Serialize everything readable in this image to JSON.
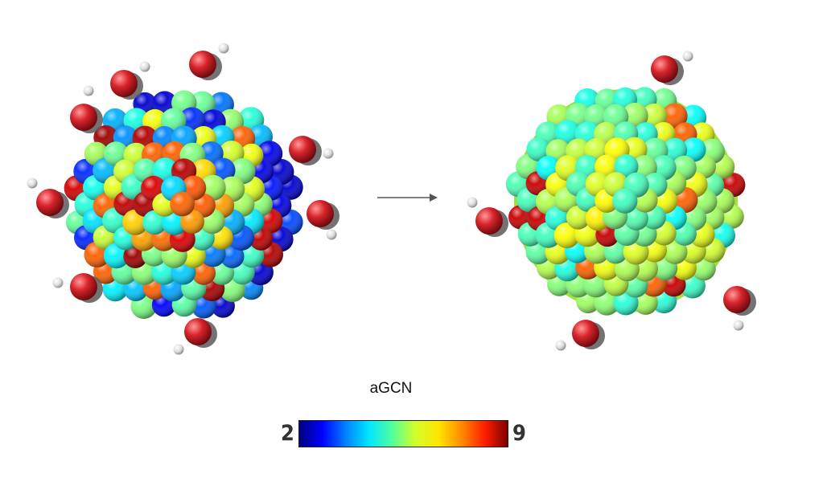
{
  "colorbar": {
    "title": "aGCN",
    "min_label": "2",
    "max_label": "9",
    "stops": [
      "#00007f",
      "#0000ff",
      "#0080ff",
      "#00e5ff",
      "#50ff9f",
      "#d0ff2a",
      "#ffe600",
      "#ff8c00",
      "#ff1e00",
      "#800000"
    ]
  },
  "panels": [
    {
      "name": "initial-nanoparticle",
      "adsorbates": 9
    },
    {
      "name": "final-nanoparticle",
      "adsorbates": 5
    }
  ]
}
